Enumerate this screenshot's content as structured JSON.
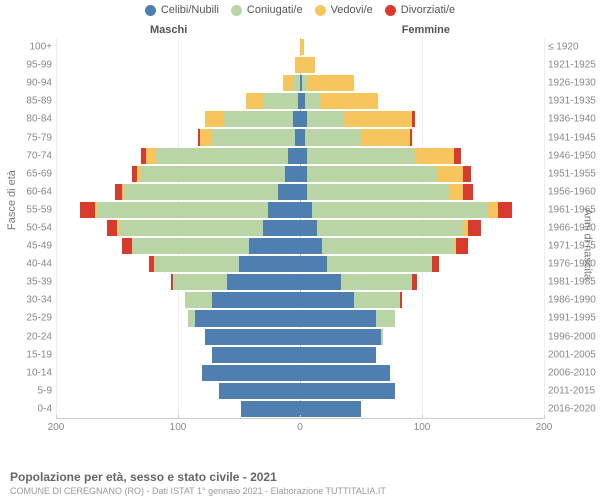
{
  "chart": {
    "type": "population-pyramid",
    "title": "Popolazione per età, sesso e stato civile - 2021",
    "subtitle": "COMUNE DI CEREGNANO (RO) - Dati ISTAT 1° gennaio 2021 - Elaborazione TUTTITALIA.IT",
    "left_axis_title": "Fasce di età",
    "right_axis_title": "Anni di nascita",
    "male_header": "Maschi",
    "female_header": "Femmine",
    "background_color": "#ffffff",
    "grid_color": "#eeeeee",
    "axis_line_color": "#cccccc",
    "center_line_color": "#bbbbbb",
    "label_color": "#888888",
    "title_color": "#666666",
    "subtitle_color": "#999999",
    "legend_fontsize": 11,
    "axis_label_fontsize": 10,
    "title_fontsize": 12,
    "subtitle_fontsize": 9,
    "legend": [
      {
        "label": "Celibi/Nubili",
        "color": "#4f7fb0"
      },
      {
        "label": "Coniugati/e",
        "color": "#b9d5a6"
      },
      {
        "label": "Vedovi/e",
        "color": "#f7c55e"
      },
      {
        "label": "Divorziati/e",
        "color": "#d83a2d"
      }
    ],
    "x_max": 200,
    "x_ticks": [
      200,
      100,
      0,
      100,
      200
    ],
    "series_colors": {
      "celibi": "#4f7fb0",
      "coniugati": "#b9d5a6",
      "vedovi": "#f7c55e",
      "divorziati": "#d83a2d"
    },
    "rows": [
      {
        "age": "100+",
        "year": "≤ 1920",
        "m": {
          "cel": 0,
          "con": 0,
          "ved": 0,
          "div": 0
        },
        "f": {
          "cel": 0,
          "con": 0,
          "ved": 3,
          "div": 0
        }
      },
      {
        "age": "95-99",
        "year": "1921-1925",
        "m": {
          "cel": 0,
          "con": 0,
          "ved": 4,
          "div": 0
        },
        "f": {
          "cel": 0,
          "con": 0,
          "ved": 12,
          "div": 0
        }
      },
      {
        "age": "90-94",
        "year": "1926-1930",
        "m": {
          "cel": 0,
          "con": 6,
          "ved": 8,
          "div": 0
        },
        "f": {
          "cel": 2,
          "con": 4,
          "ved": 38,
          "div": 0
        }
      },
      {
        "age": "85-89",
        "year": "1931-1935",
        "m": {
          "cel": 2,
          "con": 28,
          "ved": 14,
          "div": 0
        },
        "f": {
          "cel": 4,
          "con": 12,
          "ved": 48,
          "div": 0
        }
      },
      {
        "age": "80-84",
        "year": "1936-1940",
        "m": {
          "cel": 6,
          "con": 56,
          "ved": 16,
          "div": 0
        },
        "f": {
          "cel": 6,
          "con": 30,
          "ved": 56,
          "div": 2
        }
      },
      {
        "age": "75-79",
        "year": "1941-1945",
        "m": {
          "cel": 4,
          "con": 68,
          "ved": 10,
          "div": 2
        },
        "f": {
          "cel": 4,
          "con": 46,
          "ved": 40,
          "div": 2
        }
      },
      {
        "age": "70-74",
        "year": "1946-1950",
        "m": {
          "cel": 10,
          "con": 108,
          "ved": 8,
          "div": 4
        },
        "f": {
          "cel": 6,
          "con": 88,
          "ved": 32,
          "div": 6
        }
      },
      {
        "age": "65-69",
        "year": "1951-1955",
        "m": {
          "cel": 12,
          "con": 118,
          "ved": 4,
          "div": 4
        },
        "f": {
          "cel": 6,
          "con": 106,
          "ved": 22,
          "div": 6
        }
      },
      {
        "age": "60-64",
        "year": "1956-1960",
        "m": {
          "cel": 18,
          "con": 126,
          "ved": 2,
          "div": 6
        },
        "f": {
          "cel": 6,
          "con": 116,
          "ved": 12,
          "div": 8
        }
      },
      {
        "age": "55-59",
        "year": "1961-1965",
        "m": {
          "cel": 26,
          "con": 140,
          "ved": 2,
          "div": 12
        },
        "f": {
          "cel": 10,
          "con": 144,
          "ved": 8,
          "div": 12
        }
      },
      {
        "age": "50-54",
        "year": "1966-1970",
        "m": {
          "cel": 30,
          "con": 118,
          "ved": 2,
          "div": 8
        },
        "f": {
          "cel": 14,
          "con": 120,
          "ved": 4,
          "div": 10
        }
      },
      {
        "age": "45-49",
        "year": "1971-1975",
        "m": {
          "cel": 42,
          "con": 96,
          "ved": 0,
          "div": 8
        },
        "f": {
          "cel": 18,
          "con": 108,
          "ved": 2,
          "div": 10
        }
      },
      {
        "age": "40-44",
        "year": "1976-1980",
        "m": {
          "cel": 50,
          "con": 70,
          "ved": 0,
          "div": 4
        },
        "f": {
          "cel": 22,
          "con": 86,
          "ved": 0,
          "div": 6
        }
      },
      {
        "age": "35-39",
        "year": "1981-1985",
        "m": {
          "cel": 60,
          "con": 44,
          "ved": 0,
          "div": 2
        },
        "f": {
          "cel": 34,
          "con": 58,
          "ved": 0,
          "div": 4
        }
      },
      {
        "age": "30-34",
        "year": "1986-1990",
        "m": {
          "cel": 72,
          "con": 22,
          "ved": 0,
          "div": 0
        },
        "f": {
          "cel": 44,
          "con": 38,
          "ved": 0,
          "div": 2
        }
      },
      {
        "age": "25-29",
        "year": "1991-1995",
        "m": {
          "cel": 86,
          "con": 6,
          "ved": 0,
          "div": 0
        },
        "f": {
          "cel": 62,
          "con": 16,
          "ved": 0,
          "div": 0
        }
      },
      {
        "age": "20-24",
        "year": "1996-2000",
        "m": {
          "cel": 78,
          "con": 0,
          "ved": 0,
          "div": 0
        },
        "f": {
          "cel": 66,
          "con": 2,
          "ved": 0,
          "div": 0
        }
      },
      {
        "age": "15-19",
        "year": "2001-2005",
        "m": {
          "cel": 72,
          "con": 0,
          "ved": 0,
          "div": 0
        },
        "f": {
          "cel": 62,
          "con": 0,
          "ved": 0,
          "div": 0
        }
      },
      {
        "age": "10-14",
        "year": "2006-2010",
        "m": {
          "cel": 80,
          "con": 0,
          "ved": 0,
          "div": 0
        },
        "f": {
          "cel": 74,
          "con": 0,
          "ved": 0,
          "div": 0
        }
      },
      {
        "age": "5-9",
        "year": "2011-2015",
        "m": {
          "cel": 66,
          "con": 0,
          "ved": 0,
          "div": 0
        },
        "f": {
          "cel": 78,
          "con": 0,
          "ved": 0,
          "div": 0
        }
      },
      {
        "age": "0-4",
        "year": "2016-2020",
        "m": {
          "cel": 48,
          "con": 0,
          "ved": 0,
          "div": 0
        },
        "f": {
          "cel": 50,
          "con": 0,
          "ved": 0,
          "div": 0
        }
      }
    ]
  }
}
